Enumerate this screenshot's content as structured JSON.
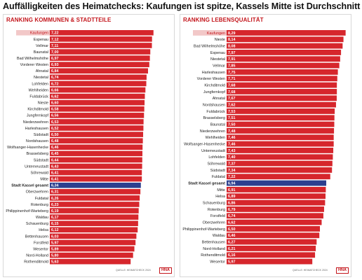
{
  "headline": "Auffälligkeiten des Heimatchecks: Kaufungen ist spitze, Kassels Mitte ist Durchschnitt",
  "colors": {
    "bar": "#d6262c",
    "highlight_bar": "#2c3f8f",
    "accent": "#c4161c",
    "top_label_bg": "#f2c8c8"
  },
  "chart_data": [
    {
      "type": "bar",
      "orientation": "horizontal",
      "title": "RANKING KOMMUNEN & STADTTEILE",
      "xlim": [
        0,
        10
      ],
      "highlight": "Stadt Kassel gesamt",
      "categories": [
        "Kaufungen",
        "Espenau",
        "Vellmar",
        "Baunatal",
        "Bad Wilhelmshöhe",
        "Vorderer Westen",
        "Ahnatal",
        "Niestetal",
        "Lohfelden",
        "Wehlheiden",
        "Fuldabrück",
        "Nieste",
        "Kirchditmold",
        "Jungfernkopf",
        "Niederzwehren",
        "Harleshausen",
        "Südstadt",
        "Nordshausen",
        "Wolfsanger-Hasenhecke",
        "Brasselsberg",
        "Südstadt",
        "Unterneustadt",
        "Söhrewald",
        "Mitte",
        "Stadt Kassel gesamt",
        "Oberzwehren",
        "Fuldatal",
        "Rotenburg",
        "Philippinenhof-Warteberg",
        "Waldau",
        "Schauenburg",
        "Helsa",
        "Bettenhausen",
        "Forstfeld",
        "Wesertor",
        "Nord-Holland",
        "Rothenditmold"
      ],
      "values": [
        7.22,
        7.12,
        7.11,
        7.0,
        6.97,
        6.93,
        6.84,
        6.74,
        6.72,
        6.66,
        6.62,
        6.6,
        6.58,
        6.56,
        6.53,
        6.52,
        6.5,
        6.48,
        6.46,
        6.45,
        6.44,
        6.43,
        6.41,
        6.41,
        6.34,
        6.31,
        6.26,
        6.23,
        6.19,
        6.17,
        6.15,
        6.12,
        6.03,
        5.97,
        5.89,
        5.8,
        5.63
      ],
      "value_labels": [
        "7,22",
        "7,12",
        "7,11",
        "7,00",
        "6,97",
        "6,93",
        "6,84",
        "6,74",
        "6,72",
        "6,66",
        "6,62",
        "6,60",
        "6,58",
        "6,56",
        "6,53",
        "6,52",
        "6,50",
        "6,48",
        "6,46",
        "6,45",
        "6,44",
        "6,43",
        "6,41",
        "6,41",
        "6,34",
        "6,31",
        "6,26",
        "6,23",
        "6,19",
        "6,17",
        "6,15",
        "6,12",
        "6,03",
        "5,97",
        "5,89",
        "5,80",
        "5,63"
      ],
      "credit": "QUELLE: HEIMATCHECK 2024",
      "logo": "HNA"
    },
    {
      "type": "bar",
      "orientation": "horizontal",
      "title": "RANKING LEBENSQUALITÄT",
      "xlim": [
        0,
        10
      ],
      "highlight": "Stadt Kassel gesamt",
      "categories": [
        "Kaufungen",
        "Nieste",
        "Bad Wilhelmshöhe",
        "Espenau",
        "Niestetal",
        "Vellmar",
        "Harleshausen",
        "Vorderer Westen",
        "Kirchditmold",
        "Jungfernkopf",
        "Ahnatal",
        "Nordshausen",
        "Fuldabrück",
        "Brasselsberg",
        "Baunatal",
        "Niederzwehren",
        "Wehlheiden",
        "Wolfsanger-Hasenhecke",
        "Unterneustadt",
        "Lohfelden",
        "Söhrewald",
        "Südstadt",
        "Fuldatal",
        "Stadt Kassel gesamt",
        "Mitte",
        "Helsa",
        "Schauenburg",
        "Rotenburg",
        "Forstfeld",
        "Oberzwehren",
        "Philippinenhof-Warteberg",
        "Waldau",
        "Bettenhausen",
        "Nord-Holland",
        "Rothenditmold",
        "Wesertor"
      ],
      "values": [
        8.29,
        8.14,
        8.08,
        7.97,
        7.91,
        7.85,
        7.75,
        7.71,
        7.68,
        7.68,
        7.67,
        7.62,
        7.53,
        7.51,
        7.5,
        7.48,
        7.46,
        7.46,
        7.43,
        7.4,
        7.37,
        7.34,
        7.22,
        6.94,
        6.91,
        6.89,
        6.86,
        6.79,
        6.74,
        6.62,
        6.5,
        6.46,
        6.27,
        6.21,
        6.16,
        5.97
      ],
      "value_labels": [
        "8,29",
        "8,14",
        "8,08",
        "7,97",
        "7,91",
        "7,85",
        "7,75",
        "7,71",
        "7,68",
        "7,68",
        "7,67",
        "7,62",
        "7,53",
        "7,51",
        "7,50",
        "7,48",
        "7,46",
        "7,46",
        "7,43",
        "7,40",
        "7,37",
        "7,34",
        "7,22",
        "6,94",
        "6,91",
        "6,89",
        "6,86",
        "6,79",
        "6,74",
        "6,62",
        "6,50",
        "6,46",
        "6,27",
        "6,21",
        "6,16",
        "5,97"
      ],
      "credit": "QUELLE: HEIMATCHECK 2024",
      "logo": "HNA"
    }
  ]
}
